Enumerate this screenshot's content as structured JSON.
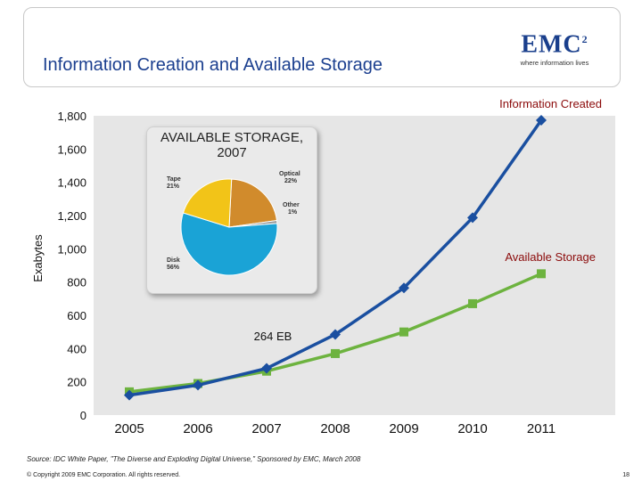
{
  "header": {
    "title": "Information Creation and Available Storage",
    "logo_text": "EMC",
    "logo_sup": "2",
    "logo_tagline": "where information lives"
  },
  "footer": {
    "source": "Source: IDC White Paper, \"The Diverse and Exploding Digital Universe,\" Sponsored by EMC, March 2008",
    "copyright": "© Copyright 2009 EMC Corporation. All rights reserved.",
    "page_number": "18"
  },
  "colors": {
    "info_created": "#1a4fa0",
    "available_storage": "#6db33f",
    "plot_bg": "#e6e6e6"
  },
  "chart_data": [
    {
      "type": "line",
      "title": "",
      "xlabel": "",
      "ylabel": "Exabytes",
      "categories": [
        "2005",
        "2006",
        "2007",
        "2008",
        "2009",
        "2010",
        "2011"
      ],
      "ylim": [
        0,
        1800
      ],
      "yticks": [
        0,
        200,
        400,
        600,
        800,
        1000,
        1200,
        1400,
        1600,
        1800
      ],
      "ytick_labels": [
        "0",
        "200",
        "400",
        "600",
        "800",
        "1,000",
        "1,200",
        "1,400",
        "1,600",
        "1,800"
      ],
      "series": [
        {
          "name": "Information Created",
          "values": [
            120,
            180,
            281,
            485,
            765,
            1187,
            1773
          ]
        },
        {
          "name": "Available Storage",
          "values": [
            140,
            190,
            264,
            370,
            500,
            670,
            850
          ]
        }
      ],
      "annotation": "264 EB"
    },
    {
      "type": "pie",
      "title": "AVAILABLE STORAGE, 2007",
      "slices": [
        {
          "label": "Optical",
          "value": 22,
          "pct_label": "22%",
          "color": "#d18b2c"
        },
        {
          "label": "Other",
          "value": 1,
          "pct_label": "1%",
          "color": "#9a9a9a"
        },
        {
          "label": "Disk",
          "value": 56,
          "pct_label": "56%",
          "color": "#1aa3d6"
        },
        {
          "label": "Tape",
          "value": 21,
          "pct_label": "21%",
          "color": "#f2c418"
        }
      ]
    }
  ]
}
